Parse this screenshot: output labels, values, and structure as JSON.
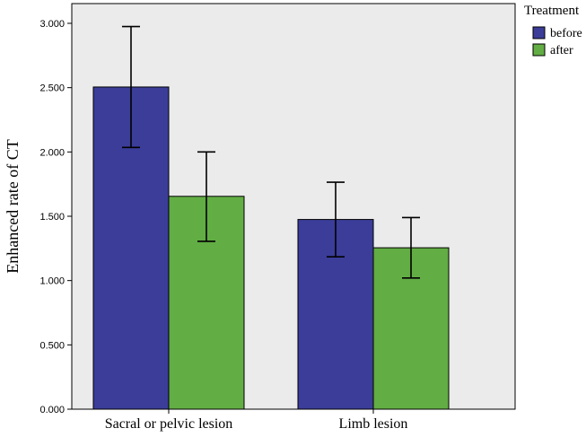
{
  "chart_data": {
    "type": "bar",
    "title": "",
    "xlabel": "",
    "ylabel": "Enhanced rate of CT",
    "ylim": [
      0,
      3.2
    ],
    "yticks": [
      0,
      0.5,
      1.0,
      1.5,
      2.0,
      2.5,
      3.0
    ],
    "ytick_labels": [
      "0.000",
      "0.500",
      "1.000",
      "1.500",
      "2.000",
      "2.500",
      "3.000"
    ],
    "categories": [
      "Sacral or pelvic lesion",
      "Limb lesion"
    ],
    "legend": {
      "title": "Treatment",
      "placement": "outside-top-right"
    },
    "grid": false,
    "error_bars": true,
    "series": [
      {
        "name": "before",
        "color": "#3b3d99",
        "values": [
          2.505,
          1.475
        ],
        "err_low": [
          2.035,
          1.185
        ],
        "err_high": [
          2.975,
          1.765
        ]
      },
      {
        "name": "after",
        "color": "#62ad44",
        "values": [
          1.655,
          1.255
        ],
        "err_low": [
          1.305,
          1.02
        ],
        "err_high": [
          2.0,
          1.49
        ]
      }
    ]
  },
  "colors": {
    "plot_background": "#ebebeb"
  }
}
